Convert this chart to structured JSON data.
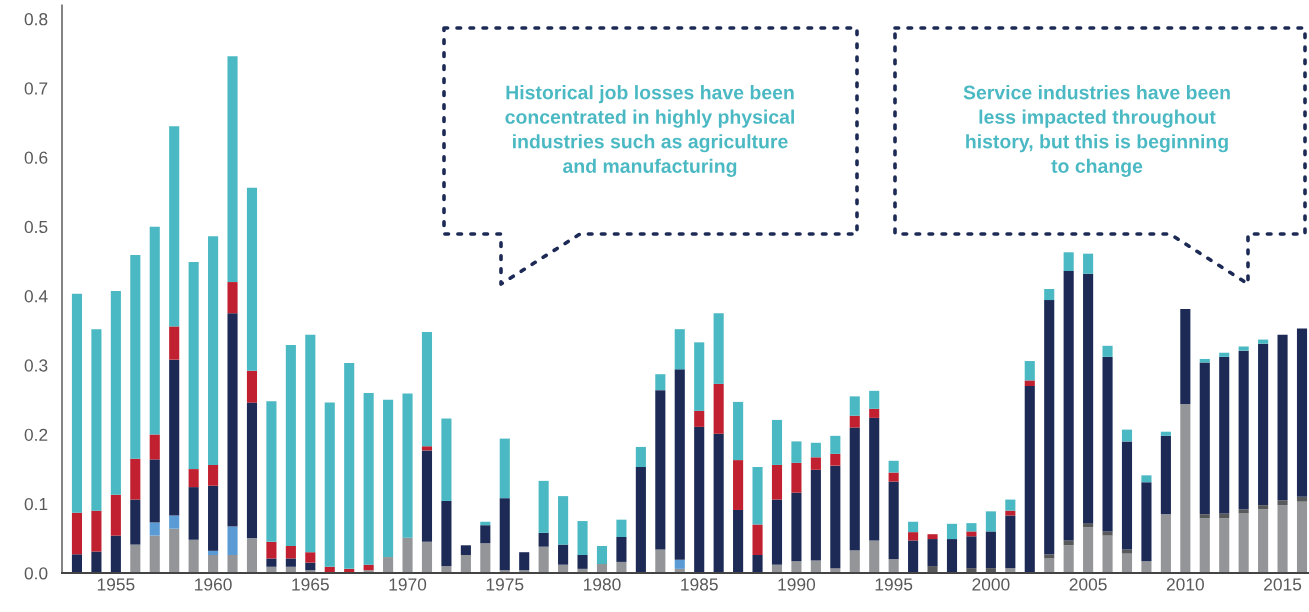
{
  "chart_data": {
    "type": "bar",
    "stacked": true,
    "categories": [
      null,
      null,
      "1955",
      null,
      null,
      null,
      null,
      "1960",
      null,
      null,
      null,
      null,
      "1965",
      null,
      null,
      null,
      null,
      "1970",
      null,
      null,
      null,
      null,
      "1975",
      null,
      null,
      null,
      null,
      "1980",
      null,
      null,
      null,
      null,
      "1985",
      null,
      null,
      null,
      null,
      "1990",
      null,
      null,
      null,
      null,
      "1995",
      null,
      null,
      null,
      null,
      "2000",
      null,
      null,
      null,
      null,
      "2005",
      null,
      null,
      null,
      null,
      "2010",
      null,
      null,
      null,
      null,
      "2015",
      null
    ],
    "series": [
      {
        "color": "#939598",
        "values": [
          null,
          null,
          null,
          0.041,
          0.054,
          0.064,
          0.048,
          0.026,
          0.026,
          0.05,
          0.009,
          0.009,
          0.004,
          null,
          null,
          0.004,
          0.023,
          0.051,
          0.045,
          0.01,
          0.026,
          0.043,
          0.004,
          0.004,
          0.038,
          0.012,
          0.006,
          0.013,
          0.016,
          null,
          0.034,
          0.006,
          null,
          null,
          null,
          null,
          0.012,
          0.017,
          0.018,
          0.007,
          0.033,
          0.047,
          0.02,
          null,
          null,
          null,
          null,
          null,
          0.007,
          null,
          0.021,
          0.04,
          0.066,
          0.054,
          0.028,
          0.017,
          0.085,
          0.244,
          0.079,
          0.079,
          0.086,
          0.092,
          0.098,
          0.103
        ]
      },
      {
        "color": "#58595b",
        "values": [
          null,
          null,
          null,
          null,
          null,
          null,
          null,
          null,
          null,
          null,
          null,
          null,
          null,
          null,
          null,
          null,
          null,
          null,
          null,
          null,
          null,
          null,
          null,
          null,
          null,
          null,
          null,
          null,
          null,
          null,
          null,
          null,
          null,
          null,
          null,
          null,
          null,
          null,
          null,
          null,
          null,
          null,
          null,
          null,
          0.01,
          null,
          0.007,
          0.007,
          null,
          null,
          0.006,
          0.007,
          0.006,
          0.006,
          0.006,
          null,
          null,
          null,
          0.006,
          0.007,
          0.006,
          0.006,
          0.007,
          0.007
        ]
      },
      {
        "color": "#5b9bd5",
        "values": [
          null,
          null,
          null,
          null,
          0.019,
          0.019,
          null,
          0.006,
          0.041,
          null,
          null,
          null,
          null,
          null,
          null,
          null,
          null,
          null,
          null,
          null,
          null,
          null,
          null,
          null,
          null,
          null,
          null,
          null,
          null,
          null,
          null,
          0.013,
          null,
          null,
          null,
          null,
          null,
          null,
          null,
          null,
          null,
          null,
          null,
          null,
          null,
          null,
          null,
          null,
          null,
          null,
          null,
          null,
          null,
          null,
          null,
          null,
          null,
          null,
          null,
          null,
          null,
          null,
          null,
          null
        ]
      },
      {
        "color": "#1c2a55",
        "values": [
          0.027,
          0.031,
          0.054,
          0.065,
          0.091,
          0.225,
          0.076,
          0.094,
          0.308,
          0.196,
          0.012,
          0.012,
          0.011,
          null,
          null,
          null,
          null,
          null,
          0.132,
          0.094,
          0.014,
          0.026,
          0.104,
          0.026,
          0.02,
          0.029,
          0.02,
          null,
          0.036,
          0.153,
          0.23,
          0.275,
          0.211,
          0.201,
          0.091,
          0.026,
          0.094,
          0.099,
          0.131,
          0.148,
          0.177,
          0.177,
          0.112,
          0.047,
          0.039,
          0.049,
          0.046,
          0.053,
          0.076,
          0.27,
          0.367,
          0.389,
          0.36,
          0.252,
          0.156,
          0.114,
          0.113,
          0.137,
          0.219,
          0.226,
          0.229,
          0.233,
          0.239,
          0.243
        ]
      },
      {
        "color": "#c0202f",
        "values": [
          0.06,
          0.059,
          0.059,
          0.059,
          0.036,
          0.048,
          0.026,
          0.03,
          0.045,
          0.046,
          0.024,
          0.018,
          0.015,
          0.009,
          0.006,
          0.008,
          null,
          null,
          0.006,
          null,
          null,
          null,
          null,
          null,
          null,
          null,
          null,
          null,
          null,
          null,
          null,
          null,
          0.023,
          0.072,
          0.072,
          0.044,
          0.05,
          0.043,
          0.018,
          0.017,
          0.017,
          0.013,
          0.013,
          0.012,
          0.007,
          null,
          0.007,
          null,
          0.007,
          0.008,
          null,
          null,
          null,
          null,
          null,
          null,
          null,
          null,
          null,
          null,
          null,
          null,
          null,
          null
        ]
      },
      {
        "color": "#4bb9c3",
        "values": [
          0.316,
          0.262,
          0.294,
          0.294,
          0.3,
          0.289,
          0.299,
          0.33,
          0.326,
          0.264,
          0.203,
          0.29,
          0.314,
          0.237,
          0.297,
          0.248,
          0.227,
          0.208,
          0.165,
          0.119,
          null,
          0.005,
          0.086,
          null,
          0.075,
          0.07,
          0.049,
          0.026,
          0.025,
          0.029,
          0.023,
          0.058,
          0.099,
          0.102,
          0.084,
          0.083,
          0.065,
          0.031,
          0.021,
          0.026,
          0.028,
          0.026,
          0.017,
          0.015,
          null,
          0.022,
          0.012,
          0.029,
          0.016,
          0.028,
          0.016,
          0.027,
          0.029,
          0.016,
          0.017,
          0.01,
          0.006,
          null,
          0.005,
          0.006,
          0.006,
          0.006,
          null,
          null
        ]
      }
    ],
    "ylim": [
      0,
      0.82
    ],
    "yticks": [
      {
        "value": 0,
        "label": "0.0"
      },
      0.1,
      0.2,
      0.3,
      0.4,
      0.5,
      0.6,
      0.7,
      0.8
    ],
    "grid": false,
    "legend": false,
    "annotations": [
      "Historical job losses have been\nconcentrated in highly physical\nindustries such as agriculture\nand manufacturing",
      "Service industries have been\nless impacted throughout\nhistory, but this is beginning\nto change"
    ]
  }
}
